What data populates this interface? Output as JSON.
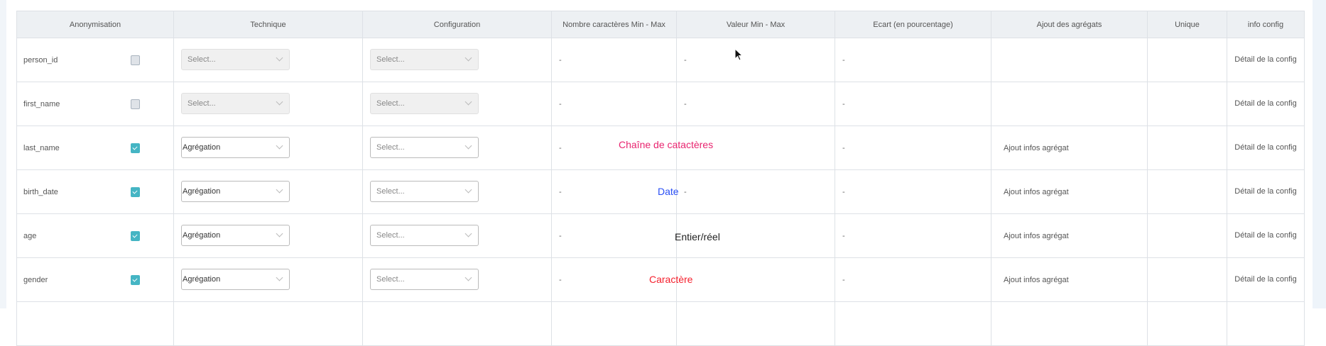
{
  "columns": [
    "Anonymisation",
    "Technique",
    "Configuration",
    "Nombre caractères Min - Max",
    "Valeur Min - Max",
    "Ecart (en pourcentage)",
    "Ajout des agrégats",
    "Unique",
    "info config"
  ],
  "rows": [
    {
      "name": "person_id",
      "checked": false,
      "technique": "Select...",
      "technique_disabled": true,
      "configuration": "Select...",
      "config_disabled": true,
      "nb_chars": "-",
      "valeur": "-",
      "ecart": "-",
      "ajout": "",
      "unique": "",
      "info": "Détail de la config"
    },
    {
      "name": "first_name",
      "checked": false,
      "technique": "Select...",
      "technique_disabled": true,
      "configuration": "Select...",
      "config_disabled": true,
      "nb_chars": "-",
      "valeur": "-",
      "ecart": "-",
      "ajout": "",
      "unique": "",
      "info": "Détail de la config"
    },
    {
      "name": "last_name",
      "checked": true,
      "technique": "Agrégation",
      "technique_disabled": false,
      "configuration": "Select...",
      "config_disabled": false,
      "nb_chars": "-",
      "valeur": "",
      "ecart": "-",
      "ajout": "Ajout infos agrégat",
      "unique": "",
      "info": "Détail de la config"
    },
    {
      "name": "birth_date",
      "checked": true,
      "technique": "Agrégation",
      "technique_disabled": false,
      "configuration": "Select...",
      "config_disabled": false,
      "nb_chars": "-",
      "valeur": "-",
      "ecart": "-",
      "ajout": "Ajout infos agrégat",
      "unique": "",
      "info": "Détail de la config"
    },
    {
      "name": "age",
      "checked": true,
      "technique": "Agrégation",
      "technique_disabled": false,
      "configuration": "Select...",
      "config_disabled": false,
      "nb_chars": "-",
      "valeur": "",
      "ecart": "-",
      "ajout": "Ajout infos agrégat",
      "unique": "",
      "info": "Détail de la config"
    },
    {
      "name": "gender",
      "checked": true,
      "technique": "Agrégation",
      "technique_disabled": false,
      "configuration": "Select...",
      "config_disabled": false,
      "nb_chars": "-",
      "valeur": "",
      "ecart": "-",
      "ajout": "Ajout infos agrégat",
      "unique": "",
      "info": "Détail de la config"
    }
  ],
  "annotations": [
    {
      "text": "Chaîne de catactères",
      "color": "#e8246f"
    },
    {
      "text": "Date",
      "color": "#2a4ff5"
    },
    {
      "text": "Entier/réel",
      "color": "#222222"
    },
    {
      "text": "Caractère",
      "color": "#f5212e"
    }
  ],
  "colors": {
    "checkbox_checked": "#45b5c4",
    "header_bg": "#edf0f3"
  }
}
